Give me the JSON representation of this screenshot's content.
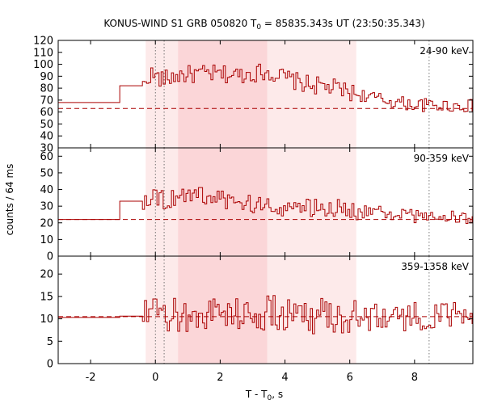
{
  "title": {
    "main": "KONUS-WIND S1 GRB 050820 T",
    "sub": "0",
    "rest": " = 85835.343s UT (23:50:35.343)"
  },
  "xlabel": {
    "main": "T - T",
    "sub": "0",
    "rest": ", s"
  },
  "ylabel": "counts / 64 ms",
  "colors": {
    "curve": "#aa0000",
    "shade_light": "#fdeaea",
    "shade_dark": "#fbd6d8",
    "axes": "#000000"
  },
  "chart_data": {
    "type": "line",
    "x_range": [
      -3.0,
      9.8
    ],
    "x_ticks": [
      -2,
      0,
      2,
      4,
      6,
      8
    ],
    "shaded_intervals": [
      {
        "x0": -0.3,
        "x1": 6.2,
        "level": "light"
      },
      {
        "x0": 0.7,
        "x1": 3.45,
        "level": "dark"
      }
    ],
    "marker_lines_x": [
      0.0,
      0.27,
      8.45
    ],
    "panels": [
      {
        "label": "24-90 keV",
        "ylim": [
          30,
          120
        ],
        "y_ticks": [
          30,
          40,
          50,
          60,
          70,
          80,
          90,
          100,
          110,
          120
        ],
        "background": 63,
        "segments": [
          {
            "x0": -3.0,
            "x1": -1.1,
            "y": 68
          },
          {
            "x0": -1.1,
            "x1": -0.4,
            "y": 82
          }
        ],
        "anchors": [
          [
            -0.4,
            82
          ],
          [
            -0.2,
            92
          ],
          [
            0.2,
            87
          ],
          [
            0.7,
            91
          ],
          [
            1.5,
            92
          ],
          [
            2.5,
            91
          ],
          [
            3.4,
            94
          ],
          [
            4.5,
            84
          ],
          [
            5.5,
            80
          ],
          [
            6.2,
            75
          ],
          [
            7.0,
            70
          ],
          [
            8.0,
            66
          ],
          [
            9.8,
            65
          ]
        ],
        "noise": 7
      },
      {
        "label": "90-359 keV",
        "ylim": [
          0,
          65
        ],
        "y_ticks": [
          0,
          10,
          20,
          30,
          40,
          50,
          60
        ],
        "background": 22,
        "segments": [
          {
            "x0": -3.0,
            "x1": -1.1,
            "y": 22
          },
          {
            "x0": -1.1,
            "x1": -0.4,
            "y": 33
          }
        ],
        "anchors": [
          [
            -0.4,
            33
          ],
          [
            -0.1,
            38
          ],
          [
            0.3,
            32
          ],
          [
            0.7,
            38
          ],
          [
            1.5,
            36
          ],
          [
            2.5,
            32
          ],
          [
            3.4,
            30
          ],
          [
            4.5,
            29
          ],
          [
            5.5,
            29
          ],
          [
            6.2,
            27
          ],
          [
            7.0,
            26
          ],
          [
            8.0,
            24
          ],
          [
            9.8,
            23
          ]
        ],
        "noise": 5
      },
      {
        "label": "359-1358 keV",
        "ylim": [
          0,
          24
        ],
        "y_ticks": [
          0,
          5,
          10,
          15,
          20
        ],
        "background": 10.5,
        "segments": [
          {
            "x0": -3.0,
            "x1": -1.1,
            "y": 10.3
          },
          {
            "x0": -1.1,
            "x1": -0.4,
            "y": 10.6
          }
        ],
        "anchors": [
          [
            -0.4,
            10.6
          ],
          [
            0.5,
            10.5
          ],
          [
            2.0,
            11.5
          ],
          [
            3.4,
            11
          ],
          [
            5.0,
            11
          ],
          [
            6.2,
            10.5
          ],
          [
            8.0,
            10.5
          ],
          [
            9.8,
            10.5
          ]
        ],
        "noise": 4
      }
    ]
  }
}
